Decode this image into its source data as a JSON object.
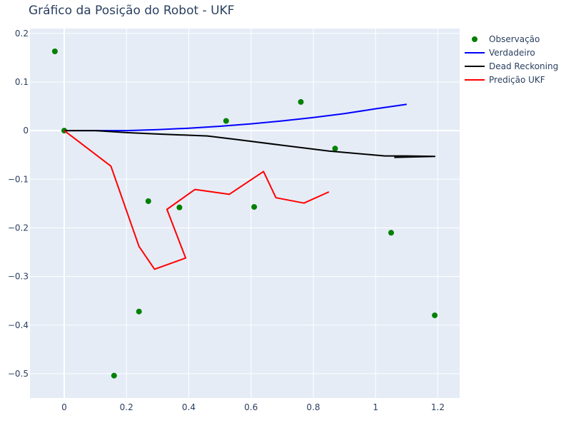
{
  "chart_data": {
    "type": "scatter",
    "title": "Gráfico da Posição do Robot - UKF",
    "xlabel": "",
    "ylabel": "",
    "xlim": [
      -0.11,
      1.27
    ],
    "ylim": [
      -0.55,
      0.21
    ],
    "x_ticks": [
      0,
      0.2,
      0.4,
      0.6,
      0.8,
      1,
      1.2
    ],
    "x_tick_labels": [
      "0",
      "0.2",
      "0.4",
      "0.6",
      "0.8",
      "1",
      "1.2"
    ],
    "y_ticks": [
      0.2,
      0.1,
      0,
      -0.1,
      -0.2,
      -0.3,
      -0.4,
      -0.5
    ],
    "y_tick_labels": [
      "0.2",
      "0.1",
      "0",
      "−0.1",
      "−0.2",
      "−0.3",
      "−0.4",
      "−0.5"
    ],
    "grid": true,
    "legend_position": "top-right",
    "series": [
      {
        "name": "Observação",
        "mode": "markers",
        "color": "#008000",
        "x": [
          -0.03,
          0.0,
          0.52,
          0.76,
          0.87,
          0.27,
          0.37,
          0.61,
          1.05,
          0.24,
          1.19,
          0.16
        ],
        "y": [
          0.163,
          0.0,
          0.02,
          0.059,
          -0.037,
          -0.145,
          -0.158,
          -0.157,
          -0.21,
          -0.372,
          -0.38,
          -0.504
        ]
      },
      {
        "name": "Verdadeiro",
        "mode": "lines",
        "color": "#0000ff",
        "x": [
          0.0,
          0.1,
          0.2,
          0.3,
          0.4,
          0.5,
          0.6,
          0.7,
          0.8,
          0.9,
          1.0,
          1.1
        ],
        "y": [
          0.0,
          0.0,
          0.0,
          0.002,
          0.005,
          0.009,
          0.014,
          0.02,
          0.027,
          0.035,
          0.045,
          0.054
        ]
      },
      {
        "name": "Dead Reckoning",
        "mode": "lines",
        "color": "#000000",
        "x": [
          0.0,
          0.1,
          0.2,
          0.3,
          0.46,
          0.55,
          0.7,
          0.85,
          1.03,
          1.1,
          1.19,
          1.06
        ],
        "y": [
          0.0,
          0.0,
          -0.004,
          -0.007,
          -0.011,
          -0.018,
          -0.03,
          -0.042,
          -0.052,
          -0.052,
          -0.053,
          -0.055
        ]
      },
      {
        "name": "Predição UKF",
        "mode": "lines",
        "color": "#ff0000",
        "x": [
          0.0,
          0.15,
          0.24,
          0.29,
          0.39,
          0.33,
          0.42,
          0.53,
          0.64,
          0.68,
          0.77,
          0.85
        ],
        "y": [
          0.0,
          -0.073,
          -0.238,
          -0.285,
          -0.262,
          -0.162,
          -0.121,
          -0.131,
          -0.084,
          -0.138,
          -0.149,
          -0.126
        ]
      }
    ]
  }
}
